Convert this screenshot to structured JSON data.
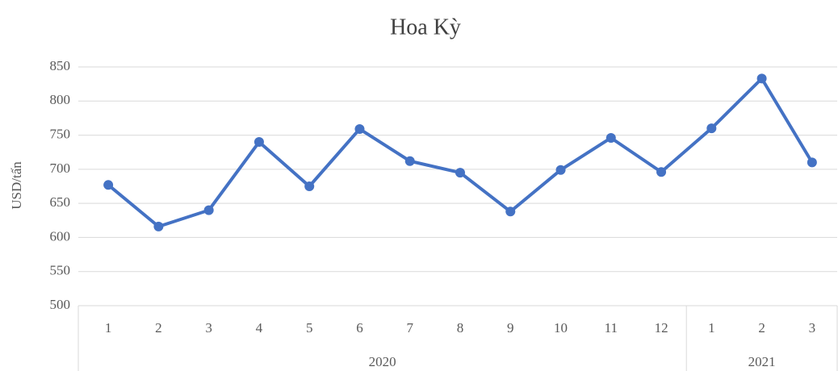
{
  "chart_data": {
    "type": "line",
    "title": "Hoa Kỳ",
    "y_label": "USD/tấn",
    "category_groups": [
      {
        "name": "2020",
        "categories": [
          "1",
          "2",
          "3",
          "4",
          "5",
          "6",
          "7",
          "8",
          "9",
          "10",
          "11",
          "12"
        ]
      },
      {
        "name": "2021",
        "categories": [
          "1",
          "2",
          "3"
        ]
      }
    ],
    "series": [
      {
        "color": "#4472c4",
        "values": [
          677,
          616,
          640,
          740,
          675,
          759,
          712,
          695,
          638,
          699,
          746,
          696,
          760,
          833,
          710
        ]
      }
    ],
    "ylim": [
      500,
      850
    ],
    "yticks": [
      500,
      550,
      600,
      650,
      700,
      750,
      800,
      850
    ],
    "grid": true
  }
}
